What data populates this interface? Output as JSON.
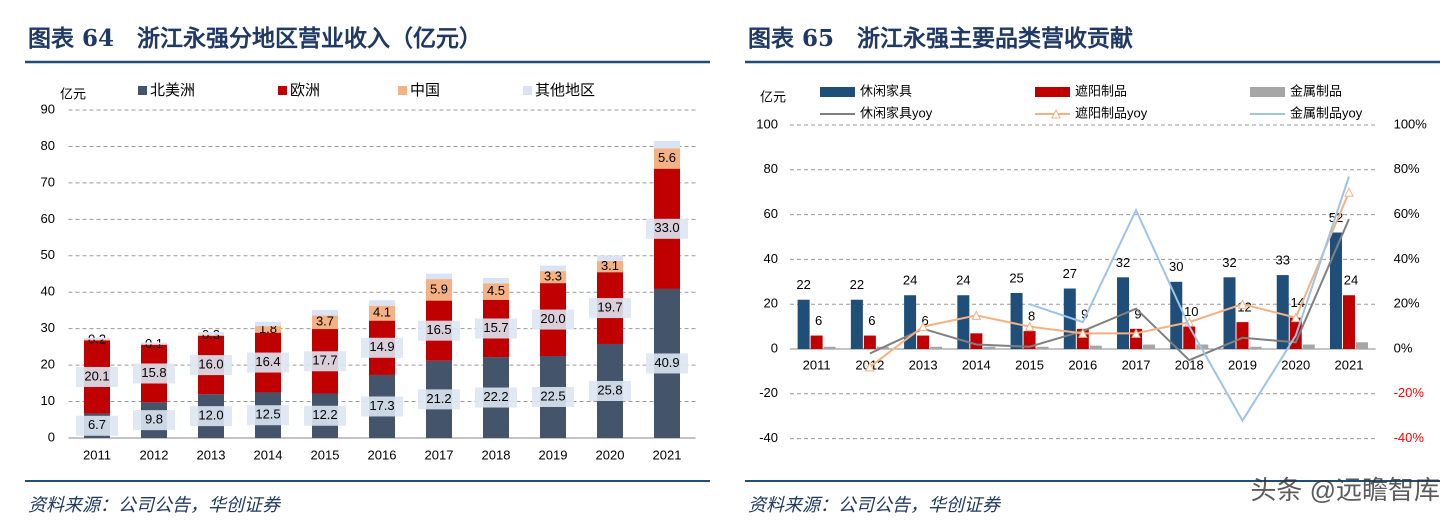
{
  "chart_data": [
    {
      "type": "bar",
      "stacked": true,
      "title": "图表 64　浙江永强分地区营业收入（亿元）",
      "y_label": "亿元",
      "categories": [
        "2011",
        "2012",
        "2013",
        "2014",
        "2015",
        "2016",
        "2017",
        "2018",
        "2019",
        "2020",
        "2021"
      ],
      "series": [
        {
          "name": "北美洲",
          "color": "#44546a",
          "values": [
            6.7,
            9.8,
            12.0,
            12.5,
            12.2,
            17.3,
            21.2,
            22.2,
            22.5,
            25.8,
            40.9
          ],
          "value_labels": [
            "6.7",
            "9.8",
            "12.0",
            "12.5",
            "12.2",
            "17.3",
            "21.2",
            "22.2",
            "22.5",
            "25.8",
            "40.9"
          ]
        },
        {
          "name": "欧洲",
          "color": "#c00000",
          "values": [
            20.1,
            15.8,
            16.0,
            16.4,
            17.7,
            14.9,
            16.5,
            15.7,
            20.0,
            19.7,
            33.0
          ],
          "value_labels": [
            "20.1",
            "15.8",
            "16.0",
            "16.4",
            "17.7",
            "14.9",
            "16.5",
            "15.7",
            "20.0",
            "19.7",
            "33.0"
          ]
        },
        {
          "name": "中国",
          "color": "#f4b183",
          "values": [
            0.2,
            0.1,
            0.3,
            1.8,
            3.7,
            4.1,
            5.9,
            4.5,
            3.3,
            3.1,
            5.6
          ],
          "value_labels": [
            "0.2",
            "0.1",
            "0.3",
            "1.8",
            "3.7",
            "4.1",
            "5.9",
            "4.5",
            "3.3",
            "3.1",
            "5.6"
          ]
        },
        {
          "name": "其他地区",
          "color": "#dae3f3",
          "values": [
            0.5,
            0.5,
            0.8,
            1.2,
            1.5,
            1.5,
            1.5,
            1.5,
            1.5,
            1.5,
            2.0
          ]
        }
      ],
      "ylim": [
        0,
        90
      ],
      "yticks": [
        0,
        10,
        20,
        30,
        40,
        50,
        60,
        70,
        80,
        90
      ],
      "grid": true
    },
    {
      "type": "combo",
      "title": "图表 65　浙江永强主要品类营收贡献",
      "y_label": "亿元",
      "categories": [
        "2011",
        "2012",
        "2013",
        "2014",
        "2015",
        "2016",
        "2017",
        "2018",
        "2019",
        "2020",
        "2021"
      ],
      "series": [
        {
          "name": "休闲家具",
          "kind": "bar",
          "color": "#1f4e79",
          "values": [
            22,
            22,
            24,
            24,
            25,
            27,
            32,
            30,
            32,
            33,
            52
          ]
        },
        {
          "name": "遮阳制品",
          "kind": "bar",
          "color": "#c00000",
          "values": [
            6,
            6,
            6,
            7,
            8,
            9,
            9,
            10,
            12,
            14,
            24
          ],
          "value_labels": [
            "6",
            "6",
            "6",
            null,
            "8",
            "9",
            "9",
            "10",
            "12",
            "14",
            "24"
          ]
        },
        {
          "name": "金属制品",
          "kind": "bar",
          "color": "#a6a6a6",
          "values": [
            1,
            1,
            1,
            1,
            1,
            1.5,
            2,
            2,
            1,
            2,
            3
          ]
        },
        {
          "name": "休闲家具yoy",
          "kind": "line",
          "axis": "y2",
          "color": "#808080",
          "values": [
            null,
            -2,
            9,
            2,
            1,
            8,
            18,
            -5,
            5,
            3,
            58
          ]
        },
        {
          "name": "遮阳制品yoy",
          "kind": "line",
          "axis": "y2",
          "color": "#f4b183",
          "marker": "triangle",
          "values": [
            null,
            -8,
            10,
            15,
            10,
            7,
            7,
            12,
            20,
            14,
            70
          ]
        },
        {
          "name": "金属制品yoy",
          "kind": "line",
          "axis": "y2",
          "color": "#9dc3e6",
          "values": [
            null,
            null,
            null,
            null,
            20,
            12,
            62,
            10,
            -32,
            6,
            77
          ]
        }
      ],
      "ylim": [
        -40,
        100
      ],
      "yticks": [
        -40,
        -20,
        0,
        20,
        40,
        60,
        80,
        100
      ],
      "y2lim": [
        -40,
        100
      ],
      "y2ticks": [
        {
          "value": -40,
          "label": "-40%"
        },
        {
          "value": -20,
          "label": "-20%"
        },
        {
          "value": 0,
          "label": "0%"
        },
        {
          "value": 20,
          "label": "20%"
        },
        {
          "value": 40,
          "label": "40%"
        },
        {
          "value": 60,
          "label": "60%"
        },
        {
          "value": 80,
          "label": "80%"
        },
        {
          "value": 100,
          "label": "100%"
        }
      ],
      "y2_negative_color": "#ff0000",
      "grid": true
    }
  ],
  "sources": [
    "资料来源：公司公告，华创证券",
    "资料来源：公司公告，华创证券"
  ],
  "watermark": "头条 @远瞻智库"
}
